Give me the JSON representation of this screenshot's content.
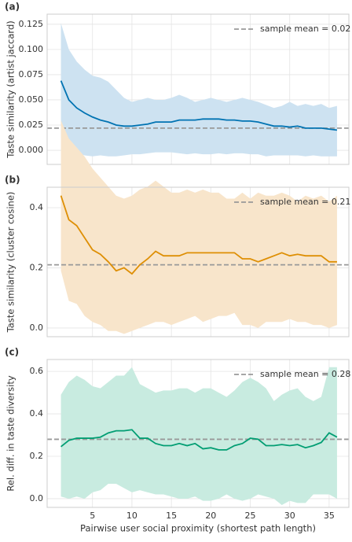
{
  "chart_data": [
    {
      "type": "line",
      "panel_label": "(a)",
      "ylabel": "Taste similarity (artist jaccard)",
      "x": [
        1,
        2,
        3,
        4,
        5,
        6,
        7,
        8,
        9,
        10,
        11,
        12,
        13,
        14,
        15,
        16,
        17,
        18,
        19,
        20,
        21,
        22,
        23,
        24,
        25,
        26,
        27,
        28,
        29,
        30,
        31,
        32,
        33,
        34,
        35,
        36
      ],
      "values": [
        0.069,
        0.05,
        0.042,
        0.037,
        0.033,
        0.03,
        0.028,
        0.025,
        0.024,
        0.024,
        0.025,
        0.026,
        0.028,
        0.028,
        0.028,
        0.03,
        0.03,
        0.03,
        0.031,
        0.031,
        0.031,
        0.03,
        0.03,
        0.029,
        0.029,
        0.028,
        0.026,
        0.024,
        0.024,
        0.023,
        0.024,
        0.022,
        0.022,
        0.022,
        0.021,
        0.02
      ],
      "upper": [
        0.126,
        0.1,
        0.088,
        0.08,
        0.074,
        0.072,
        0.068,
        0.06,
        0.052,
        0.048,
        0.05,
        0.052,
        0.05,
        0.05,
        0.052,
        0.055,
        0.052,
        0.048,
        0.05,
        0.052,
        0.05,
        0.048,
        0.05,
        0.052,
        0.05,
        0.048,
        0.045,
        0.042,
        0.044,
        0.048,
        0.044,
        0.046,
        0.044,
        0.046,
        0.042,
        0.044
      ],
      "lower": [
        0.012,
        0.0,
        -0.003,
        -0.005,
        -0.006,
        -0.005,
        -0.006,
        -0.006,
        -0.005,
        -0.004,
        -0.004,
        -0.003,
        -0.002,
        -0.002,
        -0.002,
        -0.003,
        -0.004,
        -0.003,
        -0.004,
        -0.004,
        -0.003,
        -0.004,
        -0.003,
        -0.003,
        -0.004,
        -0.004,
        -0.006,
        -0.005,
        -0.005,
        -0.005,
        -0.005,
        -0.006,
        -0.005,
        -0.006,
        -0.006,
        -0.006
      ],
      "color": "#0173b2",
      "band_color": "#cde2f1",
      "mean": 0.022,
      "mean_label": "sample mean = 0.02",
      "xlim": [
        -0.75,
        37.5
      ],
      "xticks": [
        5,
        10,
        15,
        20,
        25,
        30,
        35
      ],
      "ylim": [
        -0.014,
        0.135
      ],
      "yticks": [
        {
          "value": 0,
          "label": "0.000"
        },
        {
          "value": 0.025,
          "label": "0.025"
        },
        {
          "value": 0.05,
          "label": "0.050"
        },
        {
          "value": 0.075,
          "label": "0.075"
        },
        {
          "value": 0.1,
          "label": "0.100"
        },
        {
          "value": 0.125,
          "label": "0.125"
        }
      ],
      "grid": true
    },
    {
      "type": "line",
      "panel_label": "(b)",
      "ylabel": "Taste similarity (cluster cosine)",
      "x": [
        1,
        2,
        3,
        4,
        5,
        6,
        7,
        8,
        9,
        10,
        11,
        12,
        13,
        14,
        15,
        16,
        17,
        18,
        19,
        20,
        21,
        22,
        23,
        24,
        25,
        26,
        27,
        28,
        29,
        30,
        31,
        32,
        33,
        34,
        35,
        36
      ],
      "values": [
        0.44,
        0.36,
        0.34,
        0.3,
        0.26,
        0.245,
        0.22,
        0.19,
        0.2,
        0.18,
        0.21,
        0.23,
        0.255,
        0.24,
        0.24,
        0.24,
        0.25,
        0.25,
        0.25,
        0.25,
        0.25,
        0.25,
        0.25,
        0.23,
        0.23,
        0.22,
        0.23,
        0.24,
        0.25,
        0.24,
        0.245,
        0.24,
        0.24,
        0.24,
        0.22,
        0.22
      ],
      "upper": [
        0.69,
        0.63,
        0.6,
        0.57,
        0.53,
        0.5,
        0.47,
        0.44,
        0.43,
        0.44,
        0.46,
        0.47,
        0.49,
        0.47,
        0.45,
        0.45,
        0.46,
        0.45,
        0.46,
        0.45,
        0.45,
        0.43,
        0.43,
        0.45,
        0.43,
        0.45,
        0.44,
        0.44,
        0.45,
        0.44,
        0.42,
        0.44,
        0.43,
        0.44,
        0.42,
        0.44
      ],
      "lower": [
        0.19,
        0.09,
        0.08,
        0.04,
        0.02,
        0.01,
        -0.01,
        -0.01,
        -0.02,
        -0.01,
        0.0,
        0.01,
        0.02,
        0.02,
        0.01,
        0.02,
        0.03,
        0.04,
        0.02,
        0.03,
        0.04,
        0.04,
        0.05,
        0.01,
        0.01,
        0.0,
        0.02,
        0.02,
        0.02,
        0.03,
        0.02,
        0.02,
        0.01,
        0.01,
        0.0,
        0.01
      ],
      "color": "#de8f05",
      "band_color": "#f8e5cb",
      "mean": 0.21,
      "mean_label": "sample mean = 0.21",
      "xlim": [
        -0.75,
        37.5
      ],
      "xticks": [
        5,
        10,
        15,
        20,
        25,
        30,
        35
      ],
      "ylim": [
        -0.029,
        0.468
      ],
      "yticks": [
        {
          "value": 0,
          "label": "0.0"
        },
        0.2,
        0.4
      ],
      "grid": true
    },
    {
      "type": "line",
      "panel_label": "(c)",
      "ylabel": "Rel. diff. in taste diversity",
      "xlabel": "Pairwise user social proximity (shortest path length)",
      "x": [
        1,
        2,
        3,
        4,
        5,
        6,
        7,
        8,
        9,
        10,
        11,
        12,
        13,
        14,
        15,
        16,
        17,
        18,
        19,
        20,
        21,
        22,
        23,
        24,
        25,
        26,
        27,
        28,
        29,
        30,
        31,
        32,
        33,
        34,
        35,
        36
      ],
      "values": [
        0.245,
        0.275,
        0.285,
        0.285,
        0.285,
        0.29,
        0.31,
        0.32,
        0.32,
        0.325,
        0.285,
        0.285,
        0.26,
        0.25,
        0.25,
        0.26,
        0.25,
        0.26,
        0.235,
        0.24,
        0.23,
        0.23,
        0.25,
        0.26,
        0.285,
        0.28,
        0.25,
        0.25,
        0.255,
        0.25,
        0.255,
        0.24,
        0.25,
        0.265,
        0.31,
        0.29
      ],
      "upper": [
        0.49,
        0.55,
        0.58,
        0.56,
        0.53,
        0.52,
        0.55,
        0.58,
        0.58,
        0.62,
        0.54,
        0.52,
        0.5,
        0.51,
        0.51,
        0.52,
        0.52,
        0.5,
        0.52,
        0.52,
        0.5,
        0.48,
        0.51,
        0.55,
        0.57,
        0.55,
        0.52,
        0.46,
        0.49,
        0.51,
        0.52,
        0.48,
        0.46,
        0.48,
        0.62,
        0.62
      ],
      "lower": [
        0.01,
        0.0,
        0.01,
        0.0,
        0.03,
        0.04,
        0.07,
        0.07,
        0.05,
        0.03,
        0.04,
        0.03,
        0.02,
        0.02,
        0.01,
        0.0,
        0.0,
        0.01,
        -0.01,
        -0.01,
        0.0,
        0.02,
        0.0,
        -0.01,
        0.0,
        0.02,
        0.01,
        0.0,
        -0.03,
        -0.01,
        -0.02,
        -0.02,
        0.02,
        0.02,
        0.02,
        0.0
      ],
      "color": "#029e73",
      "band_color": "#c8ebe0",
      "mean": 0.28,
      "mean_label": "sample mean = 0.28",
      "xlim": [
        -0.75,
        37.5
      ],
      "xticks": [
        5,
        10,
        15,
        20,
        25,
        30,
        35
      ],
      "ylim": [
        -0.041,
        0.656
      ],
      "yticks": [
        {
          "value": 0,
          "label": "0.0"
        },
        0.2,
        0.4,
        0.6
      ],
      "grid": true
    }
  ]
}
